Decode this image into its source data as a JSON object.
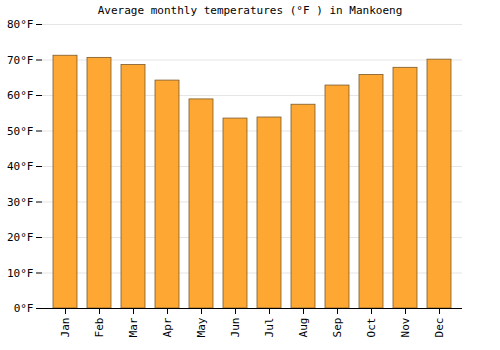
{
  "chart_data": {
    "type": "bar",
    "title": "Average monthly temperatures (°F ) in Mankoeng",
    "categories": [
      "Jan",
      "Feb",
      "Mar",
      "Apr",
      "May",
      "Jun",
      "Jul",
      "Aug",
      "Sep",
      "Oct",
      "Nov",
      "Dec"
    ],
    "values": [
      71.2,
      70.6,
      68.6,
      64.2,
      58.9,
      53.5,
      53.8,
      57.4,
      62.8,
      65.8,
      67.8,
      70.1
    ],
    "color": "#ffa733",
    "ylim": [
      0,
      80
    ],
    "yticks": [
      {
        "value": 0,
        "label": "0°F"
      },
      {
        "value": 10,
        "label": "10°F"
      },
      {
        "value": 20,
        "label": "20°F"
      },
      {
        "value": 30,
        "label": "30°F"
      },
      {
        "value": 40,
        "label": "40°F"
      },
      {
        "value": 50,
        "label": "50°F"
      },
      {
        "value": 60,
        "label": "60°F"
      },
      {
        "value": 70,
        "label": "70°F"
      },
      {
        "value": 80,
        "label": "80°F"
      }
    ],
    "grid": true
  }
}
